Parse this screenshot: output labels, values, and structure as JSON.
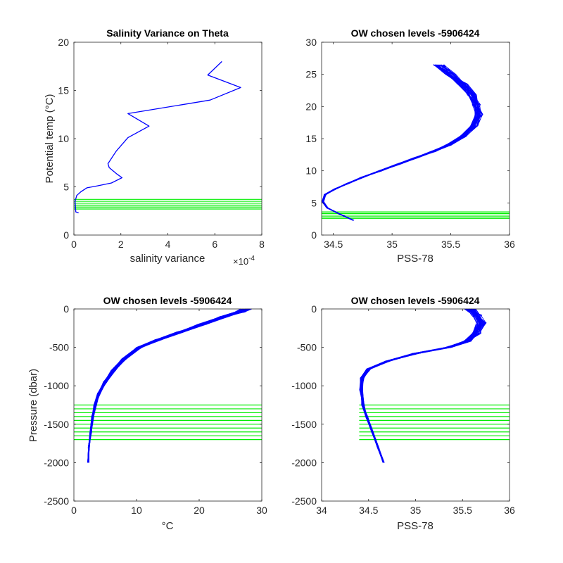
{
  "colors": {
    "profile": "#0000ff",
    "levels": "#00ee00",
    "axis": "#262626",
    "background": "#ffffff"
  },
  "chart_data": [
    {
      "id": "sal-var",
      "type": "line",
      "title": "Salinity Variance on Theta",
      "xlabel": "salinity variance",
      "xlabel_exponent": "×10",
      "xlabel_exponent_power": "-4",
      "ylabel": "Potential temp (°C)",
      "xlim": [
        0,
        8
      ],
      "ylim": [
        0,
        20
      ],
      "xticks": [
        0,
        2,
        4,
        6,
        8
      ],
      "yticks": [
        0,
        5,
        10,
        15,
        20
      ],
      "xtick_labels": [
        "0",
        "2",
        "4",
        "6",
        "8"
      ],
      "ytick_labels": [
        "0",
        "5",
        "10",
        "15",
        "20"
      ],
      "series": [
        {
          "kind": "profile",
          "x": [
            0.2,
            0.08,
            0.05,
            0.12,
            0.3,
            0.55,
            1.0,
            1.6,
            2.05,
            1.85,
            1.7,
            1.5,
            1.45,
            1.8,
            2.3,
            3.2,
            2.3,
            5.8,
            7.1,
            5.7,
            6.3
          ],
          "y": [
            2.3,
            2.4,
            3.5,
            4.1,
            4.5,
            4.9,
            5.1,
            5.4,
            5.95,
            6.3,
            6.6,
            7.0,
            7.4,
            8.7,
            10.1,
            11.3,
            12.6,
            14.0,
            15.3,
            16.6,
            18.0
          ]
        }
      ],
      "hlines": [
        2.7,
        2.9,
        3.1,
        3.3,
        3.5,
        3.7
      ],
      "hline_range": [
        0,
        8
      ]
    },
    {
      "id": "theta-sal",
      "type": "line",
      "title": "OW chosen levels -5906424",
      "xlabel": "PSS-78",
      "ylabel": "",
      "xlim": [
        34.4,
        36
      ],
      "ylim": [
        0,
        30
      ],
      "xticks": [
        34.5,
        35,
        35.5,
        36
      ],
      "yticks": [
        0,
        5,
        10,
        15,
        20,
        25,
        30
      ],
      "xtick_labels": [
        "34.5",
        "35",
        "35.5",
        "36"
      ],
      "ytick_labels": [
        "0",
        "5",
        "10",
        "15",
        "20",
        "25",
        "30"
      ],
      "series": [
        {
          "kind": "profile-bundle",
          "x": [
            34.67,
            34.55,
            34.45,
            34.41,
            34.43,
            34.52,
            34.62,
            34.75,
            34.9,
            35.05,
            35.2,
            35.35,
            35.48,
            35.6,
            35.7,
            35.74,
            35.72,
            35.68,
            35.6,
            35.5,
            35.4
          ],
          "y": [
            2.3,
            3.3,
            4.2,
            5.2,
            6.3,
            7.2,
            8.0,
            9.0,
            10.0,
            11.0,
            12.0,
            13.0,
            14.0,
            15.3,
            17.0,
            18.8,
            20.3,
            21.8,
            23.5,
            25.0,
            26.5
          ]
        }
      ],
      "hlines": [
        2.6,
        2.85,
        3.1,
        3.35,
        3.6
      ],
      "hline_range": [
        34.4,
        36
      ]
    },
    {
      "id": "pres-temp",
      "type": "line",
      "title": "OW chosen levels -5906424",
      "xlabel": "°C",
      "ylabel": "Pressure (dbar)",
      "xlim": [
        0,
        30
      ],
      "ylim": [
        -2500,
        0
      ],
      "xticks": [
        0,
        10,
        20,
        30
      ],
      "yticks": [
        -2500,
        -2000,
        -1500,
        -1000,
        -500,
        0
      ],
      "xtick_labels": [
        "0",
        "10",
        "20",
        "30"
      ],
      "ytick_labels": [
        "-2500",
        "-2000",
        "-1500",
        "-1000",
        "-500",
        "0"
      ],
      "series": [
        {
          "kind": "profile-bundle",
          "x": [
            2.3,
            2.4,
            2.7,
            3.0,
            3.4,
            4.0,
            5.0,
            6.3,
            8.0,
            10.5,
            13.5,
            17.0,
            20.5,
            24.0,
            26.5,
            27.5
          ],
          "y": [
            -2000,
            -1800,
            -1600,
            -1400,
            -1250,
            -1100,
            -950,
            -800,
            -650,
            -500,
            -400,
            -300,
            -200,
            -100,
            -40,
            0
          ]
        }
      ],
      "hlines": [
        -1250,
        -1300,
        -1350,
        -1400,
        -1450,
        -1500,
        -1550,
        -1600,
        -1650,
        -1700
      ],
      "hline_range": [
        0,
        30
      ]
    },
    {
      "id": "pres-sal",
      "type": "line",
      "title": "OW chosen levels -5906424",
      "xlabel": "PSS-78",
      "ylabel": "",
      "xlim": [
        34,
        36
      ],
      "ylim": [
        -2500,
        0
      ],
      "xticks": [
        34,
        34.5,
        35,
        35.5,
        36
      ],
      "yticks": [
        -2500,
        -2000,
        -1500,
        -1000,
        -500,
        0
      ],
      "xtick_labels": [
        "34",
        "34.5",
        "35",
        "35.5",
        "36"
      ],
      "ytick_labels": [
        "-2500",
        "-2000",
        "-1500",
        "-1000",
        "-500",
        "0"
      ],
      "series": [
        {
          "kind": "profile-bundle",
          "x": [
            34.66,
            34.6,
            34.54,
            34.48,
            34.44,
            34.42,
            34.43,
            34.5,
            34.7,
            35.0,
            35.35,
            35.55,
            35.65,
            35.7,
            35.65,
            35.58
          ],
          "y": [
            -2000,
            -1800,
            -1600,
            -1400,
            -1250,
            -1050,
            -900,
            -780,
            -680,
            -580,
            -500,
            -420,
            -320,
            -180,
            -80,
            0
          ]
        }
      ],
      "hlines": [
        -1250,
        -1300,
        -1350,
        -1400,
        -1450,
        -1500,
        -1550,
        -1600,
        -1650,
        -1700
      ],
      "hline_range": [
        34.4,
        36
      ]
    }
  ]
}
